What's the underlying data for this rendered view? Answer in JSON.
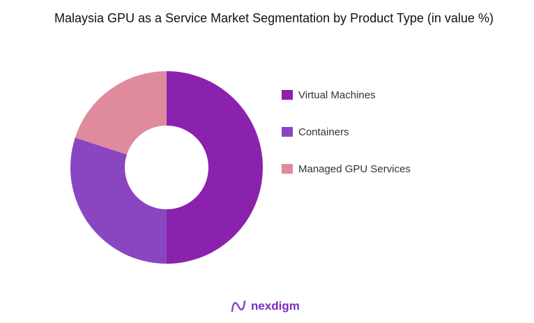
{
  "chart_data": {
    "type": "pie",
    "donut": true,
    "title": "Malaysia GPU as a Service Market Segmentation by Product Type (in value %)",
    "categories": [
      "Virtual Machines",
      "Containers",
      "Managed GPU Services"
    ],
    "values": [
      50,
      30,
      20
    ],
    "colors": [
      "#8a22ad",
      "#8a45c1",
      "#e08a9e"
    ],
    "legend_position": "right"
  },
  "branding": {
    "logo_text": "nexdigm"
  }
}
